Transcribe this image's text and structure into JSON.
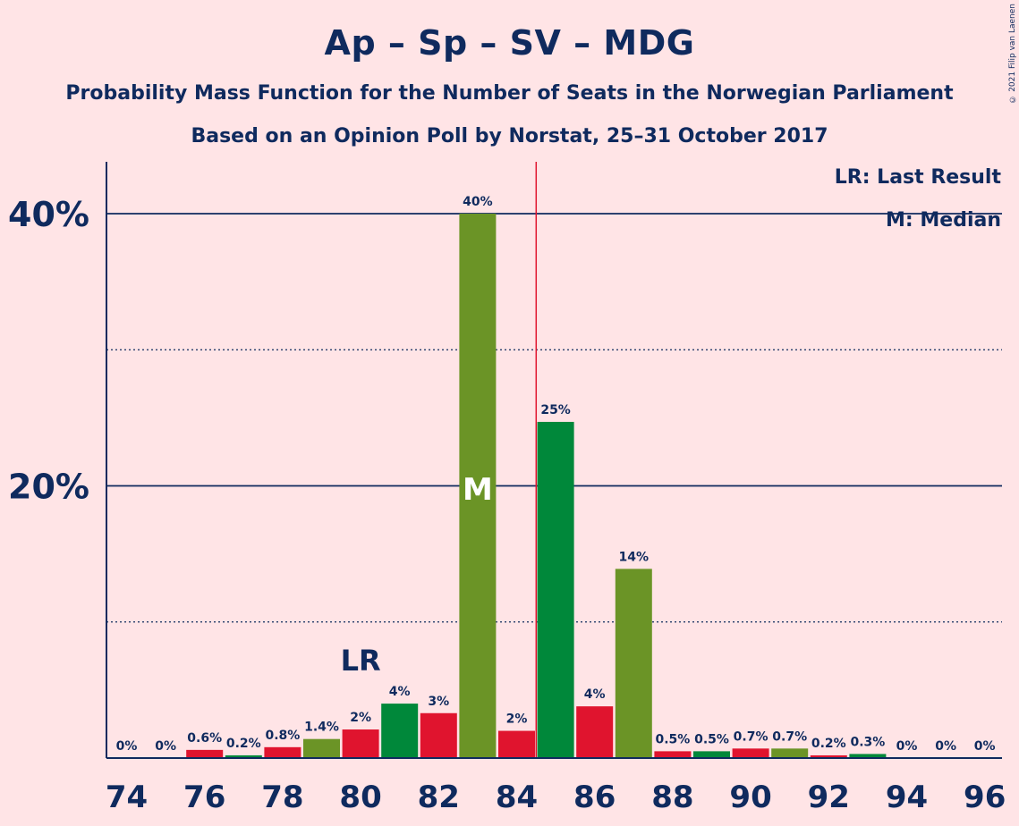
{
  "header": {
    "title": "Ap – Sp – SV – MDG",
    "subtitle": "Probability Mass Function for the Number of Seats in the Norwegian Parliament",
    "subtitle2": "Based on an Opinion Poll by Norstat, 25–31 October 2017",
    "copyright": "© 2021 Filip van Laenen"
  },
  "legend": {
    "last_result": "LR: Last Result",
    "median": "M: Median"
  },
  "chart_data": {
    "type": "bar",
    "x": [
      74,
      75,
      76,
      77,
      78,
      79,
      80,
      81,
      82,
      83,
      84,
      85,
      86,
      87,
      88,
      89,
      90,
      91,
      92,
      93,
      94,
      95,
      96
    ],
    "values": [
      0,
      0,
      0.6,
      0.2,
      0.8,
      1.4,
      2.1,
      4.0,
      3.3,
      40.0,
      2.0,
      24.7,
      3.8,
      13.9,
      0.5,
      0.5,
      0.7,
      0.7,
      0.2,
      0.3,
      0,
      0,
      0
    ],
    "labels": [
      "0%",
      "0%",
      "0.6%",
      "0.2%",
      "0.8%",
      "1.4%",
      "2%",
      "4%",
      "3%",
      "40%",
      "2%",
      "25%",
      "4%",
      "14%",
      "0.5%",
      "0.5%",
      "0.7%",
      "0.7%",
      "0.2%",
      "0.3%",
      "0%",
      "0%",
      "0%"
    ],
    "colors": [
      "#E0142E",
      "#00883A",
      "#E0142E",
      "#00883A",
      "#E0142E",
      "#6B9426",
      "#E0142E",
      "#00883A",
      "#E0142E",
      "#6B9426",
      "#E0142E",
      "#00883A",
      "#E0142E",
      "#6B9426",
      "#E0142E",
      "#00883A",
      "#E0142E",
      "#6B9426",
      "#E0142E",
      "#00883A",
      "#E0142E",
      "#6B9426",
      "#E0142E"
    ],
    "xticks": [
      74,
      76,
      78,
      80,
      82,
      84,
      86,
      88,
      90,
      92,
      94,
      96
    ],
    "yticks": [
      {
        "value": 20,
        "label": "20%"
      },
      {
        "value": 40,
        "label": "40%"
      }
    ],
    "minor_gridlines": [
      10,
      30
    ],
    "ylim": [
      0,
      44
    ],
    "majority_line": 84.5,
    "last_result": {
      "seat": 80,
      "label": "LR"
    },
    "median": {
      "seat": 83,
      "label": "M"
    }
  }
}
